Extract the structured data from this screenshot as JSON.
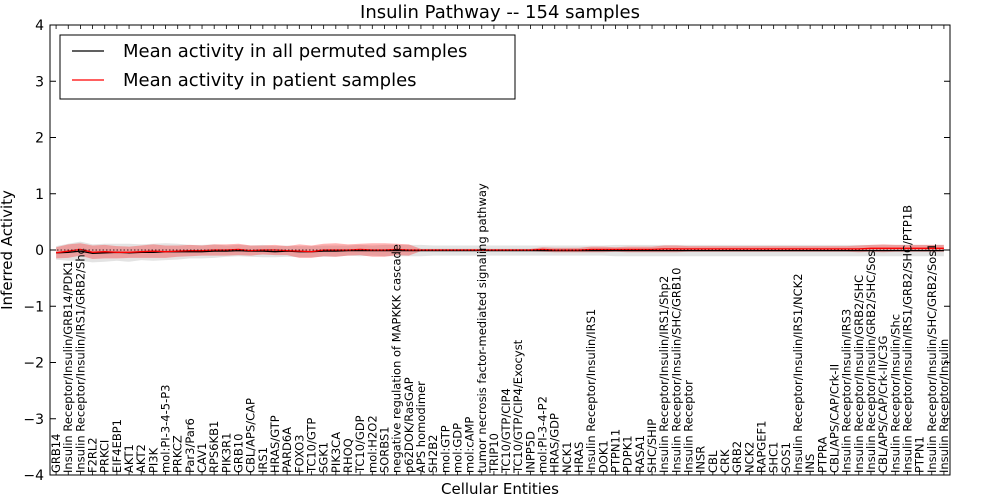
{
  "chart_data": {
    "type": "line",
    "title": "Insulin Pathway -- 154 samples",
    "xlabel": "Cellular Entities",
    "ylabel": "Inferred Activity",
    "ylim": [
      -4,
      4
    ],
    "yticks": [
      "4",
      "3",
      "2",
      "1",
      "0",
      "−1",
      "−2",
      "−3",
      "−4"
    ],
    "grid": false,
    "legend_position": "top-left",
    "categories": [
      "GRB14",
      "Insulin Receptor/Insulin/GRB14/PDK1",
      "Insulin Receptor/Insulin/IRS1/GRB2/Shc",
      "F2RL2",
      "PRKCI",
      "EIF4EBP1",
      "AKT1",
      "AKT2",
      "PI3K",
      "mol:PI-3-4-5-P3",
      "PRKCZ",
      "Par3/Par6",
      "CAV1",
      "RPS6KB1",
      "PIK3R1",
      "GRB10",
      "CBL/APS/CAP",
      "IRS1",
      "HRAS/GTP",
      "PARD6A",
      "FOXO3",
      "TC10/GTP",
      "SGK1",
      "PIK3CA",
      "RHOQ",
      "TC10/GDP",
      "mol:H2O2",
      "SORBS1",
      "negative regulation of MAPKKK cascade",
      "p62DOK/RasGAP",
      "APS homodimer",
      "SH2B2",
      "mol:GTP",
      "mol:GDP",
      "mol:cAMP",
      "tumor necrosis factor-mediated signaling pathway",
      "TRIP10",
      "TC10/GTP/CIP4",
      "TC10/GTP/CIP4/Exocyst",
      "INPP5D",
      "mol:PI-3-4-P2",
      "HRAS/GDP",
      "NCK1",
      "HRAS",
      "Insulin Receptor/Insulin/IRS1",
      "DOK1",
      "PTPN11",
      "PDPK1",
      "RASA1",
      "SHC/SHIP",
      "Insulin Receptor/Insulin/IRS1/Shp2",
      "Insulin Receptor/Insulin/SHC/GRB10",
      "Insulin Receptor",
      "INSR",
      "CBL",
      "CRK",
      "GRB2",
      "NCK2",
      "RAPGEF1",
      "SHC1",
      "SOS1",
      "Insulin Receptor/Insulin/IRS1/NCK2",
      "INS",
      "PTPRA",
      "CBL/APS/CAP/Crk-II",
      "Insulin Receptor/Insulin/IRS3",
      "Insulin Receptor/Insulin/GRB2/SHC",
      "Insulin Receptor/Insulin/GRB2/SHC/Sos",
      "CBL/APS/CAP/Crk-II/C3G",
      "Insulin Receptor/Insulin/Shc",
      "Insulin Receptor/Insulin/IRS1/GRB2/SHC/PTP1B",
      "PTPN1",
      "Insulin Receptor/Insulin/SHC/GRB2/Sos1",
      "Insulin Receptor/Insulin"
    ],
    "series": [
      {
        "name": "Mean activity in all permuted samples",
        "color": "#000000",
        "values": [
          -0.05,
          -0.04,
          -0.02,
          -0.06,
          -0.05,
          -0.04,
          -0.05,
          -0.04,
          -0.04,
          -0.03,
          -0.03,
          -0.03,
          -0.03,
          -0.02,
          -0.02,
          -0.01,
          -0.02,
          -0.02,
          -0.03,
          -0.02,
          -0.03,
          -0.03,
          -0.02,
          -0.02,
          -0.01,
          -0.01,
          -0.01,
          -0.01,
          -0.01,
          -0.01,
          -0.01,
          -0.01,
          -0.01,
          -0.01,
          -0.01,
          -0.01,
          -0.01,
          -0.01,
          -0.01,
          -0.01,
          -0.01,
          -0.01,
          -0.01,
          -0.01,
          -0.01,
          -0.01,
          -0.01,
          -0.01,
          -0.01,
          -0.01,
          -0.01,
          -0.01,
          -0.01,
          -0.01,
          -0.01,
          -0.01,
          -0.01,
          -0.01,
          -0.01,
          -0.01,
          -0.01,
          -0.01,
          -0.01,
          -0.01,
          -0.01,
          -0.01,
          -0.01,
          -0.01,
          -0.01,
          -0.01,
          -0.01,
          -0.01,
          -0.01,
          -0.01
        ],
        "spread": [
          0.12,
          0.15,
          0.17,
          0.16,
          0.16,
          0.15,
          0.16,
          0.14,
          0.15,
          0.15,
          0.14,
          0.12,
          0.12,
          0.12,
          0.1,
          0.1,
          0.1,
          0.11,
          0.1,
          0.1,
          0.1,
          0.1,
          0.1,
          0.1,
          0.09,
          0.1,
          0.09,
          0.1,
          0.1,
          0.1,
          0.1,
          0.09,
          0.09,
          0.09,
          0.09,
          0.09,
          0.09,
          0.09,
          0.09,
          0.09,
          0.09,
          0.09,
          0.09,
          0.09,
          0.09,
          0.09,
          0.1,
          0.1,
          0.1,
          0.1,
          0.1,
          0.1,
          0.1,
          0.1,
          0.1,
          0.1,
          0.1,
          0.1,
          0.1,
          0.1,
          0.1,
          0.1,
          0.1,
          0.1,
          0.1,
          0.1,
          0.1,
          0.1,
          0.1,
          0.1,
          0.1,
          0.1,
          0.1,
          0.1
        ]
      },
      {
        "name": "Mean activity in patient samples",
        "color": "#ff0000",
        "values": [
          -0.05,
          -0.02,
          0.01,
          -0.04,
          -0.03,
          -0.04,
          -0.04,
          -0.03,
          -0.02,
          -0.03,
          -0.02,
          -0.01,
          -0.01,
          0.0,
          0.0,
          0.01,
          -0.01,
          0.0,
          0.0,
          -0.01,
          -0.02,
          -0.03,
          0.0,
          0.0,
          0.0,
          0.01,
          0.0,
          0.0,
          0.01,
          0.0,
          0.0,
          0.0,
          0.0,
          0.0,
          0.0,
          0.0,
          0.0,
          0.0,
          0.0,
          0.0,
          0.01,
          0.0,
          0.0,
          0.0,
          0.01,
          0.01,
          0.01,
          0.01,
          0.01,
          0.01,
          0.02,
          0.02,
          0.02,
          0.02,
          0.02,
          0.02,
          0.02,
          0.02,
          0.02,
          0.02,
          0.02,
          0.02,
          0.02,
          0.02,
          0.02,
          0.02,
          0.02,
          0.03,
          0.03,
          0.03,
          0.03,
          0.03,
          0.03,
          0.03
        ],
        "spread": [
          0.1,
          0.12,
          0.11,
          0.12,
          0.12,
          0.11,
          0.1,
          0.11,
          0.12,
          0.11,
          0.1,
          0.1,
          0.09,
          0.1,
          0.1,
          0.1,
          0.09,
          0.08,
          0.09,
          0.08,
          0.12,
          0.11,
          0.11,
          0.12,
          0.1,
          0.1,
          0.12,
          0.12,
          0.1,
          0.1,
          0.02,
          0.02,
          0.02,
          0.02,
          0.02,
          0.02,
          0.02,
          0.02,
          0.02,
          0.02,
          0.04,
          0.04,
          0.04,
          0.04,
          0.05,
          0.05,
          0.04,
          0.05,
          0.05,
          0.05,
          0.06,
          0.06,
          0.05,
          0.05,
          0.05,
          0.05,
          0.05,
          0.05,
          0.05,
          0.05,
          0.05,
          0.05,
          0.05,
          0.05,
          0.05,
          0.05,
          0.06,
          0.06,
          0.07,
          0.06,
          0.06,
          0.06,
          0.06,
          0.06
        ]
      }
    ]
  }
}
